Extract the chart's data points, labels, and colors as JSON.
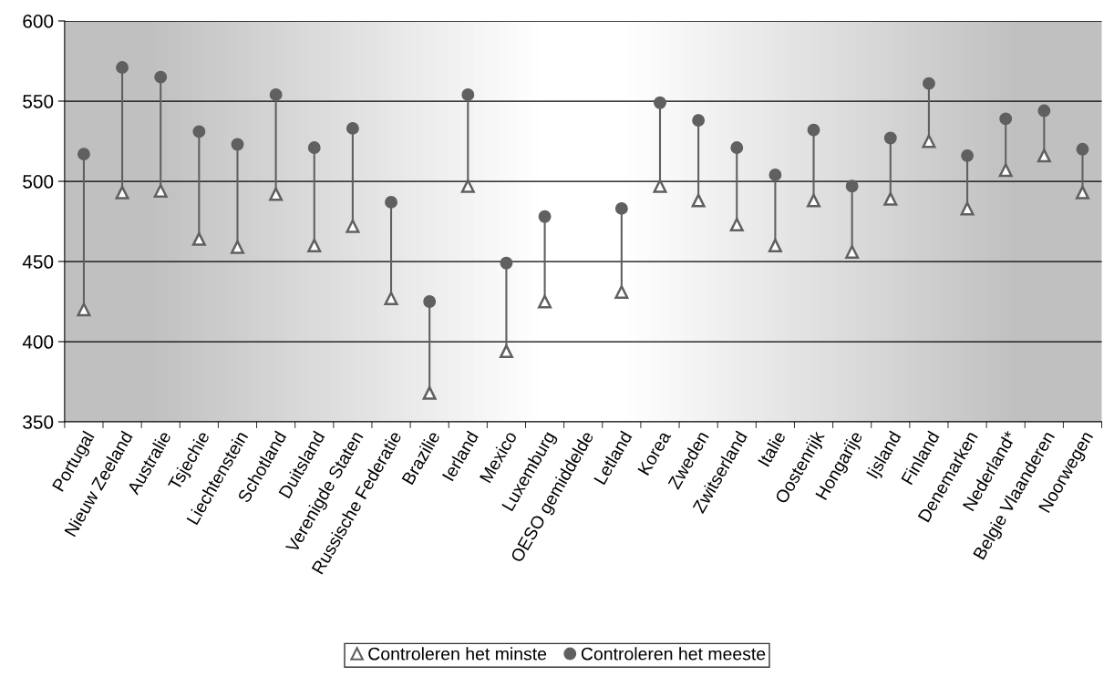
{
  "chart_data": {
    "type": "scatter",
    "categories": [
      "Portugal",
      "Nieuw Zeeland",
      "Australie",
      "Tsjechie",
      "Liechtenstein",
      "Schotland",
      "Duitsland",
      "Verenigde Staten",
      "Russische Federatie",
      "Brazilie",
      "Ierland",
      "Mexico",
      "Luxemburg",
      "OESO gemiddelde",
      "Letland",
      "Korea",
      "Zweden",
      "Zwitserland",
      "Italie",
      "Oostenrijk",
      "Hongarije",
      "Ijsland",
      "Finland",
      "Denemarken",
      "Nederland*",
      "Belgie Vlaanderen",
      "Noorwegen"
    ],
    "series": [
      {
        "name": "Controleren het minste",
        "color": "#606060",
        "marker": "triangle",
        "values": [
          420,
          493,
          494,
          464,
          459,
          492,
          460,
          472,
          427,
          368,
          497,
          394,
          425,
          null,
          431,
          497,
          488,
          473,
          460,
          488,
          456,
          489,
          525,
          483,
          507,
          516,
          493
        ]
      },
      {
        "name": "Controleren het meeste",
        "color": "#606060",
        "marker": "circle",
        "values": [
          517,
          571,
          565,
          531,
          523,
          554,
          521,
          533,
          487,
          425,
          554,
          449,
          478,
          null,
          483,
          549,
          538,
          521,
          504,
          532,
          497,
          527,
          561,
          516,
          539,
          544,
          520
        ]
      }
    ],
    "ylim": [
      350,
      600
    ],
    "yticks": [
      350,
      400,
      450,
      500,
      550,
      600
    ],
    "grid": "y",
    "legend": "bottom"
  }
}
